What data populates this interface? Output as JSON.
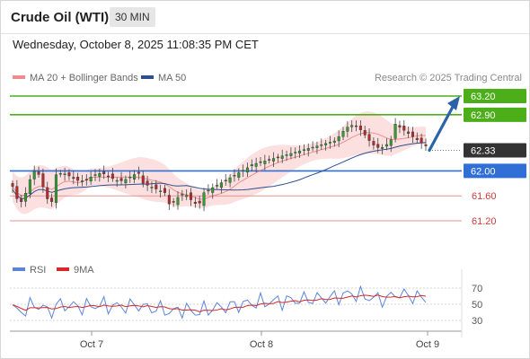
{
  "header": {
    "title": "Crude Oil (WTI)",
    "timeframe": "30 MIN"
  },
  "timestamp": "Wednesday, October 8, 2025 11:08:35 PM CET",
  "legend": {
    "ma20_label": "MA 20 + Bollinger Bands",
    "ma50_label": "MA 50",
    "credit": "Research © 2025 Trading Central"
  },
  "indicator_legend": {
    "rsi_label": "RSI",
    "ma9_label": "9MA"
  },
  "colors": {
    "resistance": "#4caf1a",
    "support": "#2f6fd6",
    "minor_support": "#e89090",
    "current": "#333333",
    "arrow": "#2a63a8",
    "ma20": "#e86a6a",
    "ma50": "#2e4f8f",
    "band": "#fbd6d6",
    "up_candle": "#2e9e2e",
    "down_candle": "#b82a2a",
    "rsi": "#5b86d8",
    "rsi_ma": "#d82828"
  },
  "chart_data": [
    {
      "type": "candlestick",
      "title": "Crude Oil (WTI)",
      "timeframe": "30 MIN",
      "x_ticks": [
        "Oct 7",
        "Oct 8",
        "Oct 9"
      ],
      "ylim": [
        60.4,
        63.6
      ],
      "levels": [
        {
          "value": 63.2,
          "label": "63.20",
          "kind": "resistance"
        },
        {
          "value": 62.9,
          "label": "62.90",
          "kind": "resistance"
        },
        {
          "value": 62.33,
          "label": "62.33",
          "kind": "current"
        },
        {
          "value": 62.0,
          "label": "62.00",
          "kind": "support"
        },
        {
          "value": 61.6,
          "label": "61.60",
          "kind": "minor_support"
        },
        {
          "value": 61.2,
          "label": "61.20",
          "kind": "minor_support"
        }
      ],
      "series": [
        {
          "name": "MA 20 + Bollinger Bands"
        },
        {
          "name": "MA 50"
        }
      ],
      "forecast_arrow": {
        "from": 62.33,
        "to": 63.2
      }
    },
    {
      "type": "line",
      "ylim": [
        20,
        80
      ],
      "y_ticks": [
        70,
        50,
        30
      ],
      "series": [
        {
          "name": "RSI"
        },
        {
          "name": "9MA"
        }
      ]
    }
  ]
}
